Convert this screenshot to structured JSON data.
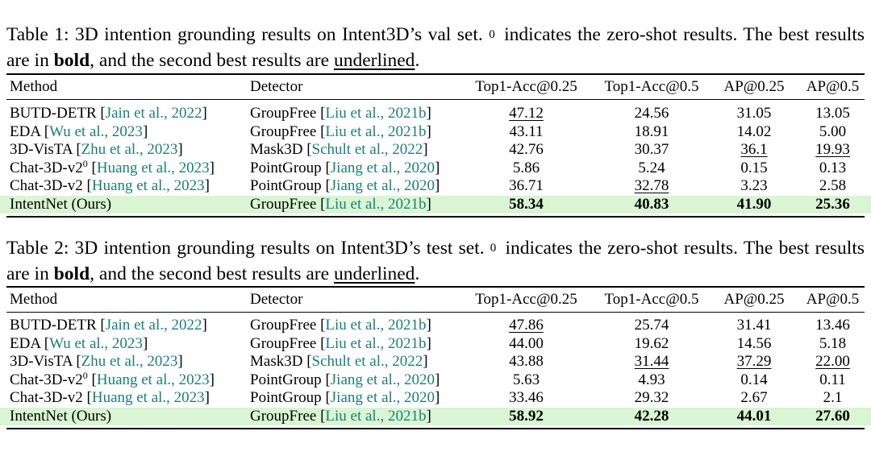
{
  "table1": {
    "caption": {
      "part1": "Table 1: 3D intention grounding results on Intent3D’s val set.",
      "sup": "0",
      "part2": "indicates the zero-shot results. The best results are in",
      "bold_word": "bold",
      "part3": ", and the second best results are",
      "underlined_word": "underlined",
      "part4": "."
    },
    "headers": [
      "Method",
      "Detector",
      "Top1-Acc@0.25",
      "Top1-Acc@0.5",
      "AP@0.25",
      "AP@0.5"
    ],
    "rows": [
      {
        "method": "BUTD-DETR",
        "method_sup": "",
        "method_cite": "Jain et al., 2022",
        "detector": "GroupFree",
        "detector_cite": "Liu et al., 2021b",
        "values": [
          "47.12",
          "24.56",
          "31.05",
          "13.05"
        ],
        "bold": [
          false,
          false,
          false,
          false
        ],
        "underline": [
          true,
          false,
          false,
          false
        ],
        "highlight": false
      },
      {
        "method": "EDA",
        "method_sup": "",
        "method_cite": "Wu et al., 2023",
        "detector": "GroupFree",
        "detector_cite": "Liu et al., 2021b",
        "values": [
          "43.11",
          "18.91",
          "14.02",
          "5.00"
        ],
        "bold": [
          false,
          false,
          false,
          false
        ],
        "underline": [
          false,
          false,
          false,
          false
        ],
        "highlight": false
      },
      {
        "method": "3D-VisTA",
        "method_sup": "",
        "method_cite": "Zhu et al., 2023",
        "detector": "Mask3D",
        "detector_cite": "Schult et al., 2022",
        "values": [
          "42.76",
          "30.37",
          "36.1",
          "19.93"
        ],
        "bold": [
          false,
          false,
          false,
          false
        ],
        "underline": [
          false,
          false,
          true,
          true
        ],
        "highlight": false
      },
      {
        "method": "Chat-3D-v2",
        "method_sup": "0",
        "method_cite": "Huang et al., 2023",
        "detector": "PointGroup",
        "detector_cite": "Jiang et al., 2020",
        "values": [
          "5.86",
          "5.24",
          "0.15",
          "0.13"
        ],
        "bold": [
          false,
          false,
          false,
          false
        ],
        "underline": [
          false,
          false,
          false,
          false
        ],
        "highlight": false
      },
      {
        "method": "Chat-3D-v2",
        "method_sup": "",
        "method_cite": "Huang et al., 2023",
        "detector": "PointGroup",
        "detector_cite": "Jiang et al., 2020",
        "values": [
          "36.71",
          "32.78",
          "3.23",
          "2.58"
        ],
        "bold": [
          false,
          false,
          false,
          false
        ],
        "underline": [
          false,
          true,
          false,
          false
        ],
        "highlight": false
      },
      {
        "method": "IntentNet (Ours)",
        "method_sup": "",
        "method_cite": "",
        "detector": "GroupFree",
        "detector_cite": "Liu et al., 2021b",
        "values": [
          "58.34",
          "40.83",
          "41.90",
          "25.36"
        ],
        "bold": [
          true,
          true,
          true,
          true
        ],
        "underline": [
          false,
          false,
          false,
          false
        ],
        "highlight": true
      }
    ]
  },
  "table2": {
    "caption": {
      "part1": "Table 2: 3D intention grounding results on Intent3D’s test set.",
      "sup": "0",
      "part2": "indicates the zero-shot results. The best results are in",
      "bold_word": "bold",
      "part3": ", and the second best results are",
      "underlined_word": "underlined",
      "part4": "."
    },
    "headers": [
      "Method",
      "Detector",
      "Top1-Acc@0.25",
      "Top1-Acc@0.5",
      "AP@0.25",
      "AP@0.5"
    ],
    "rows": [
      {
        "method": "BUTD-DETR",
        "method_sup": "",
        "method_cite": "Jain et al., 2022",
        "detector": "GroupFree",
        "detector_cite": "Liu et al., 2021b",
        "values": [
          "47.86",
          "25.74",
          "31.41",
          "13.46"
        ],
        "bold": [
          false,
          false,
          false,
          false
        ],
        "underline": [
          true,
          false,
          false,
          false
        ],
        "highlight": false
      },
      {
        "method": "EDA",
        "method_sup": "",
        "method_cite": "Wu et al., 2023",
        "detector": "GroupFree",
        "detector_cite": "Liu et al., 2021b",
        "values": [
          "44.00",
          "19.62",
          "14.56",
          "5.18"
        ],
        "bold": [
          false,
          false,
          false,
          false
        ],
        "underline": [
          false,
          false,
          false,
          false
        ],
        "highlight": false
      },
      {
        "method": "3D-VisTA",
        "method_sup": "",
        "method_cite": "Zhu et al., 2023",
        "detector": "Mask3D",
        "detector_cite": "Schult et al., 2022",
        "values": [
          "43.88",
          "31.44",
          "37.29",
          "22.00"
        ],
        "bold": [
          false,
          false,
          false,
          false
        ],
        "underline": [
          false,
          true,
          true,
          true
        ],
        "highlight": false
      },
      {
        "method": "Chat-3D-v2",
        "method_sup": "0",
        "method_cite": "Huang et al., 2023",
        "detector": "PointGroup",
        "detector_cite": "Jiang et al., 2020",
        "values": [
          "5.63",
          "4.93",
          "0.14",
          "0.11"
        ],
        "bold": [
          false,
          false,
          false,
          false
        ],
        "underline": [
          false,
          false,
          false,
          false
        ],
        "highlight": false
      },
      {
        "method": "Chat-3D-v2",
        "method_sup": "",
        "method_cite": "Huang et al., 2023",
        "detector": "PointGroup",
        "detector_cite": "Jiang et al., 2020",
        "values": [
          "33.46",
          "29.32",
          "2.67",
          "2.1"
        ],
        "bold": [
          false,
          false,
          false,
          false
        ],
        "underline": [
          false,
          false,
          false,
          false
        ],
        "highlight": false
      },
      {
        "method": "IntentNet (Ours)",
        "method_sup": "",
        "method_cite": "",
        "detector": "GroupFree",
        "detector_cite": "Liu et al., 2021b",
        "values": [
          "58.92",
          "42.28",
          "44.01",
          "27.60"
        ],
        "bold": [
          true,
          true,
          true,
          true
        ],
        "underline": [
          false,
          false,
          false,
          false
        ],
        "highlight": true
      }
    ]
  },
  "colors": {
    "citation": "#1a7f7a",
    "highlight_row": "#d9f5d3"
  }
}
